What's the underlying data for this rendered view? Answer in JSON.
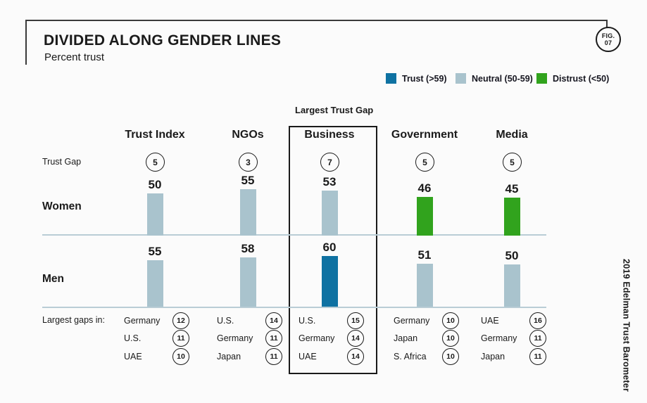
{
  "page": {
    "background": "#fbfbfb"
  },
  "fig_badge": {
    "line1": "FIG.",
    "line2": "07"
  },
  "header": {
    "title": "DIVIDED ALONG GENDER LINES",
    "subtitle": "Percent trust"
  },
  "status_colors": {
    "trust": "#0f72a2",
    "neutral": "#a9c3cd",
    "distrust": "#31a31d"
  },
  "legend": {
    "items": [
      {
        "label": "Trust (>59)",
        "status": "trust",
        "color": "#0f72a2"
      },
      {
        "label": "Neutral (50-59)",
        "status": "neutral",
        "color": "#a9c3cd"
      },
      {
        "label": "Distrust (<50)",
        "status": "distrust",
        "color": "#31a31d"
      }
    ]
  },
  "labels": {
    "largest_trust_gap": "Largest Trust Gap",
    "trust_gap": "Trust Gap",
    "largest_gaps_in": "Largest gaps in:"
  },
  "attribution": "2019 Edelman Trust Barometer",
  "chart_data": {
    "type": "bar",
    "title": "DIVIDED ALONG GENDER LINES",
    "subtitle": "Percent trust",
    "unit": "percent trust",
    "legend_position": "top-right",
    "categories": [
      "Trust Index",
      "NGOs",
      "Business",
      "Government",
      "Media"
    ],
    "highlighted_category": "Business",
    "trust_gap": [
      5,
      3,
      7,
      5,
      5
    ],
    "series": [
      {
        "name": "Women",
        "values": [
          50,
          55,
          53,
          46,
          45
        ],
        "status": [
          "neutral",
          "neutral",
          "neutral",
          "distrust",
          "distrust"
        ]
      },
      {
        "name": "Men",
        "values": [
          55,
          58,
          60,
          51,
          50
        ],
        "status": [
          "neutral",
          "neutral",
          "trust",
          "neutral",
          "neutral"
        ]
      }
    ],
    "largest_gaps": [
      [
        {
          "country": "Germany",
          "gap": 12
        },
        {
          "country": "U.S.",
          "gap": 11
        },
        {
          "country": "UAE",
          "gap": 10
        }
      ],
      [
        {
          "country": "U.S.",
          "gap": 14
        },
        {
          "country": "Germany",
          "gap": 11
        },
        {
          "country": "Japan",
          "gap": 11
        }
      ],
      [
        {
          "country": "U.S.",
          "gap": 15
        },
        {
          "country": "Germany",
          "gap": 14
        },
        {
          "country": "UAE",
          "gap": 14
        }
      ],
      [
        {
          "country": "Germany",
          "gap": 10
        },
        {
          "country": "Japan",
          "gap": 10
        },
        {
          "country": "S. Africa",
          "gap": 10
        }
      ],
      [
        {
          "country": "UAE",
          "gap": 16
        },
        {
          "country": "Germany",
          "gap": 11
        },
        {
          "country": "Japan",
          "gap": 11
        }
      ]
    ]
  }
}
